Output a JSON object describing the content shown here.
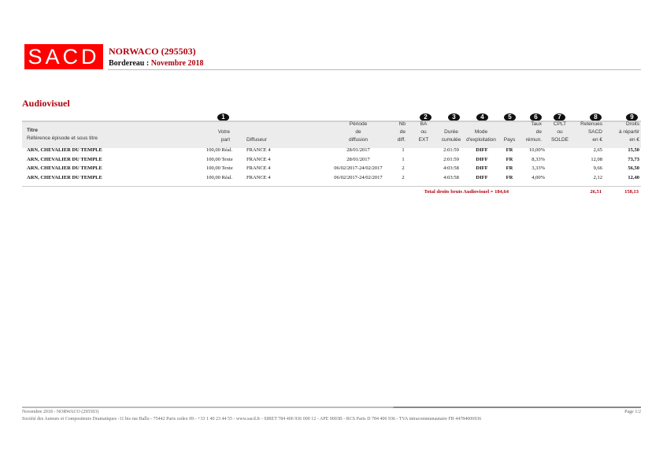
{
  "header": {
    "logo": "SACD",
    "title": "NORWACO (295503)",
    "bordereau_label": "Bordereau :",
    "bordereau_value": "Novembre 2018"
  },
  "section": "Audiovisuel",
  "badges": [
    "1",
    "2",
    "3",
    "4",
    "5",
    "6",
    "7",
    "8",
    "9"
  ],
  "columns": {
    "titre": "Titre",
    "reference": "Référence épisode et sous titre",
    "votre": "Votre",
    "part": "part",
    "diffuseur": "Diffuseur",
    "periode": [
      "Période",
      "de",
      "diffusion"
    ],
    "nb": [
      "Nb",
      "de",
      "diff."
    ],
    "ba": [
      "BA",
      "ou",
      "EXT"
    ],
    "duree": [
      "Durée",
      "cumulée"
    ],
    "mode": [
      "Mode",
      "d'exploitation"
    ],
    "pays": "Pays",
    "taux": [
      "Taux",
      "de",
      "rémun."
    ],
    "cplt": [
      "CPLT",
      "ou",
      "SOLDE"
    ],
    "retenues": [
      "Retenues",
      "SACD",
      "en €"
    ],
    "droits": [
      "Droits",
      "à répartir",
      "en €"
    ]
  },
  "rows": [
    {
      "titre": "ARN, CHEVALIER DU TEMPLE",
      "part": "100,00 Réal.",
      "diffuseur": "FRANCE 4",
      "periode": "28/01/2017",
      "nb": "1",
      "duree": "2:01:59",
      "mode": "DIFF",
      "pays": "FR",
      "taux": "10,00%",
      "retenues": "2,65",
      "droits": "15,50"
    },
    {
      "titre": "ARN, CHEVALIER DU TEMPLE",
      "part": "100,00 Texte",
      "diffuseur": "FRANCE 4",
      "periode": "28/01/2017",
      "nb": "1",
      "duree": "2:01:59",
      "mode": "DIFF",
      "pays": "FR",
      "taux": "8,33%",
      "retenues": "12,08",
      "droits": "73,73"
    },
    {
      "titre": "ARN, CHEVALIER DU TEMPLE",
      "part": "100,00 Texte",
      "diffuseur": "FRANCE 4",
      "periode": "06/02/2017-24/02/2017",
      "nb": "2",
      "duree": "4:03:58",
      "mode": "DIFF",
      "pays": "FR",
      "taux": "3,33%",
      "retenues": "9,66",
      "droits": "56,50"
    },
    {
      "titre": "ARN, CHEVALIER DU TEMPLE",
      "part": "100,00 Réal.",
      "diffuseur": "FRANCE 4",
      "periode": "06/02/2017-24/02/2017",
      "nb": "2",
      "duree": "4:03:58",
      "mode": "DIFF",
      "pays": "FR",
      "taux": "4,00%",
      "retenues": "2,12",
      "droits": "12,40"
    }
  ],
  "total": {
    "label": "Total droits bruts Audiovisuel = 184,64",
    "retenues": "26,51",
    "droits": "158,13"
  },
  "footer": {
    "line1": "Novembre 2018 - NORWACO (295503)",
    "line2": "Société des Auteurs et Compositeurs Dramatiques -11 bis rue Ballu - 75442 Paris cedex 09 - +33 1 40 23 44 55 - www.sacd.fr - SIRET 784 406 936 000 12 - APE 9003B - RCS Paris D 784 406 936 - TVA intracommunautaire FR 44784006936",
    "page": "Page 1/2"
  }
}
